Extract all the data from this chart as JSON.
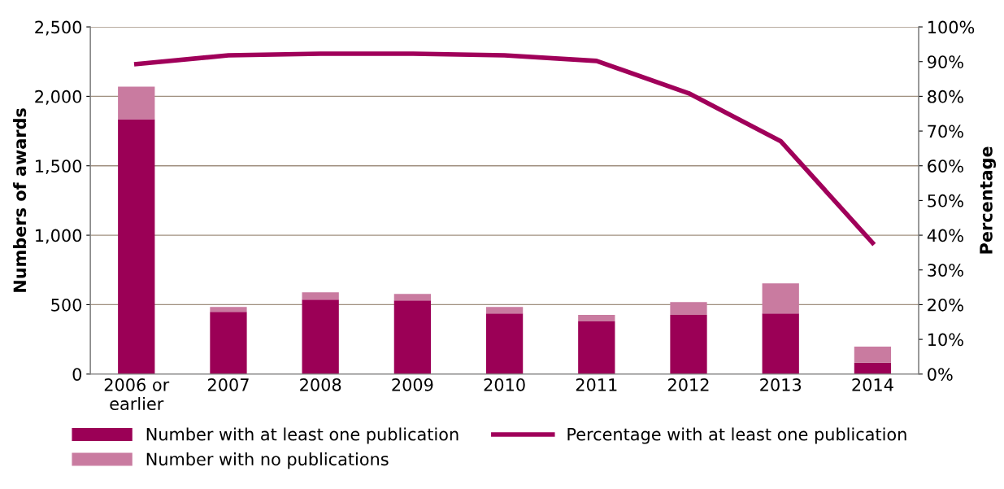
{
  "chart_data": {
    "type": "bar",
    "stacked": true,
    "categories": [
      "2006 or\nearlier",
      "2007",
      "2008",
      "2009",
      "2010",
      "2011",
      "2012",
      "2013",
      "2014"
    ],
    "series": [
      {
        "name": "Number with at least one publication",
        "color": "#9b0056",
        "values": [
          1836,
          449,
          536,
          530,
          437,
          379,
          426,
          437,
          82
        ]
      },
      {
        "name": "Number with no publications",
        "color": "#c97ba0",
        "values": [
          233,
          35,
          53,
          47,
          47,
          47,
          93,
          216,
          116
        ]
      },
      {
        "name": "Percentage with at least one publication",
        "type": "line",
        "axis": "y2",
        "color": "#a0005a",
        "values": [
          89.3,
          91.8,
          92.3,
          92.3,
          91.8,
          90.2,
          80.9,
          67.1,
          37.8
        ]
      }
    ],
    "ylabel": "Numbers of awards",
    "y2label": "Percentage",
    "ylim": [
      0,
      2500
    ],
    "yticks": [
      {
        "value": 0,
        "label": "0"
      },
      {
        "value": 500,
        "label": "500"
      },
      {
        "value": 1000,
        "label": "1,000"
      },
      {
        "value": 1500,
        "label": "1,500"
      },
      {
        "value": 2000,
        "label": "2,000"
      },
      {
        "value": 2500,
        "label": "2,500"
      }
    ],
    "y2lim": [
      0,
      100
    ],
    "y2ticks": [
      {
        "value": 0,
        "label": "0%"
      },
      {
        "value": 10,
        "label": "10%"
      },
      {
        "value": 20,
        "label": "20%"
      },
      {
        "value": 30,
        "label": "30%"
      },
      {
        "value": 40,
        "label": "40%"
      },
      {
        "value": 50,
        "label": "50%"
      },
      {
        "value": 60,
        "label": "60%"
      },
      {
        "value": 70,
        "label": "70%"
      },
      {
        "value": 80,
        "label": "80%"
      },
      {
        "value": 90,
        "label": "90%"
      },
      {
        "value": 100,
        "label": "100%"
      }
    ],
    "grid": "y",
    "legend": "bottom",
    "marker": "none",
    "line_style": "solid"
  }
}
